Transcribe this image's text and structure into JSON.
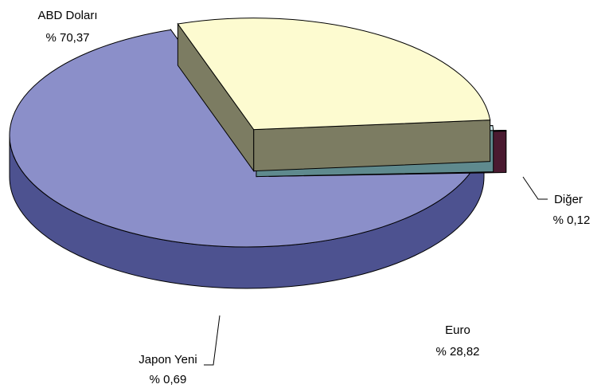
{
  "chart_data": {
    "type": "pie",
    "style": "3d-exploded",
    "slices": [
      {
        "name": "ABD Doları",
        "percent_label": "% 70,37",
        "value": 70.37,
        "top_color": "#8b8fc9",
        "side_color": "#4d5290"
      },
      {
        "name": "Euro",
        "percent_label": "% 28,82",
        "value": 28.82,
        "top_color": "#fdfbd0",
        "side_color": "#7c7c62"
      },
      {
        "name": "Japon Yeni",
        "percent_label": "% 0,69",
        "value": 0.69,
        "top_color": "#d9f3f8",
        "side_color": "#5f8a8e"
      },
      {
        "name": "Diğer",
        "percent_label": "% 0,12",
        "value": 0.12,
        "top_color": "#7a3550",
        "side_color": "#4a1a30"
      }
    ],
    "legend": "none"
  }
}
